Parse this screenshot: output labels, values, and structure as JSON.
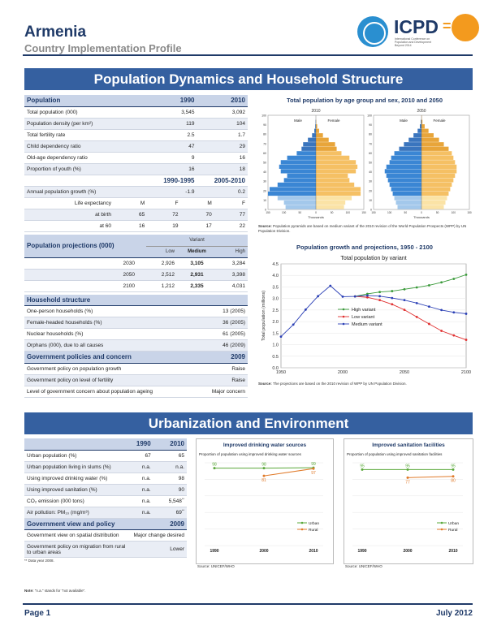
{
  "header": {
    "title": "Armenia",
    "subtitle": "Country Implementation Profile",
    "logo_text": "ICPD",
    "logo_eq": "=",
    "logo_small": "International Conference on Population and Development Beyond 2014"
  },
  "section1": {
    "title": "Population Dynamics and Household Structure"
  },
  "section2": {
    "title": "Urbanization and Environment"
  },
  "population": {
    "header": [
      "Population",
      "1990",
      "2010"
    ],
    "rows": [
      [
        "Total population (000)",
        "3,545",
        "3,092"
      ],
      [
        "Population density (per km²)",
        "119",
        "104"
      ],
      [
        "Total fertility rate",
        "2.5",
        "1.7"
      ],
      [
        "Child dependency ratio",
        "47",
        "29"
      ],
      [
        "Old-age dependency ratio",
        "9",
        "16"
      ],
      [
        "Proportion of youth (%)",
        "16",
        "18"
      ]
    ],
    "period_header": [
      "",
      "1990-1995",
      "2005-2010"
    ],
    "growth": [
      "Annual population growth (%)",
      "-1.9",
      "0.2"
    ],
    "life_header": [
      "Life expectancy",
      "M",
      "F",
      "M",
      "F"
    ],
    "life_rows": [
      [
        "at birth",
        "65",
        "72",
        "70",
        "77"
      ],
      [
        "at 60",
        "16",
        "19",
        "17",
        "22"
      ]
    ]
  },
  "projections": {
    "title": "Population projections (000)",
    "variant_label": "Variant",
    "cols": [
      "Low",
      "Medium",
      "High"
    ],
    "rows": [
      [
        "2030",
        "2,926",
        "3,105",
        "3,284"
      ],
      [
        "2050",
        "2,512",
        "2,931",
        "3,398"
      ],
      [
        "2100",
        "1,212",
        "2,335",
        "4,031"
      ]
    ]
  },
  "household": {
    "title": "Household structure",
    "rows": [
      [
        "One-person households (%)",
        "13 (2005)"
      ],
      [
        "Female-headed households (%)",
        "36 (2005)"
      ],
      [
        "Nuclear households (%)",
        "61 (2005)"
      ],
      [
        "Orphans (000), due to all causes",
        "46 (2009)"
      ]
    ]
  },
  "policies": {
    "title": "Government policies and concern",
    "year": "2009",
    "rows": [
      [
        "Government policy on population growth",
        "Raise"
      ],
      [
        "Government policy on level of fertility",
        "Raise"
      ],
      [
        "Level of government concern about population ageing",
        "Major concern"
      ]
    ]
  },
  "pyramid": {
    "title": "Total population by age group and sex, 2010 and 2050",
    "years": [
      "2010",
      "2050"
    ],
    "male": "Male",
    "female": "Female",
    "xlabel": "Thousands",
    "ages": [
      "0",
      "10",
      "20",
      "30",
      "40",
      "50",
      "60",
      "70",
      "80",
      "90",
      "100"
    ],
    "x_ticks": [
      "150",
      "100",
      "50",
      "0",
      "50",
      "100",
      "150"
    ],
    "male_2010": [
      95,
      100,
      120,
      150,
      145,
      120,
      100,
      90,
      110,
      115,
      110,
      90,
      60,
      45,
      40,
      25,
      12,
      5,
      2,
      1,
      0
    ],
    "female_2010": [
      88,
      92,
      112,
      140,
      140,
      120,
      105,
      100,
      125,
      130,
      125,
      105,
      80,
      65,
      60,
      40,
      22,
      10,
      4,
      1,
      0
    ],
    "male_2050": [
      75,
      80,
      85,
      90,
      95,
      100,
      105,
      110,
      115,
      110,
      100,
      95,
      85,
      70,
      55,
      40,
      25,
      12,
      5,
      2,
      0
    ],
    "female_2050": [
      70,
      75,
      80,
      85,
      90,
      95,
      100,
      105,
      110,
      110,
      105,
      100,
      95,
      85,
      70,
      55,
      38,
      22,
      10,
      3,
      1
    ],
    "source_label": "Source:",
    "source": "Population pyramids are based on medium variant of the 2010 revision of the World Population Prospects (WPP) by UN Population Division."
  },
  "chart_data": [
    {
      "type": "line",
      "title": "Population growth and projections, 1950 - 2100",
      "subtitle": "Total population by variant",
      "xlabel": "",
      "ylabel": "Total population (millions)",
      "xlim": [
        1950,
        2100
      ],
      "ylim": [
        0,
        4.5
      ],
      "xticks": [
        1950,
        2000,
        2050,
        2100
      ],
      "yticks": [
        0.0,
        0.5,
        1.0,
        1.5,
        2.0,
        2.5,
        3.0,
        3.5,
        4.0,
        4.5
      ],
      "legend_position": "middle-center",
      "colors": {
        "high": "#3a9a3a",
        "low": "#e03030",
        "medium": "#2a3fb5",
        "past": "#2a3fb5"
      },
      "series": [
        {
          "name": "High variant",
          "x": [
            2010,
            2020,
            2030,
            2040,
            2050,
            2060,
            2070,
            2080,
            2090,
            2100
          ],
          "values": [
            3.09,
            3.2,
            3.28,
            3.32,
            3.4,
            3.48,
            3.57,
            3.7,
            3.85,
            4.03
          ]
        },
        {
          "name": "Low variant",
          "x": [
            2010,
            2020,
            2030,
            2040,
            2050,
            2060,
            2070,
            2080,
            2090,
            2100
          ],
          "values": [
            3.09,
            3.05,
            2.93,
            2.75,
            2.51,
            2.2,
            1.9,
            1.6,
            1.4,
            1.21
          ]
        },
        {
          "name": "Medium variant",
          "x": [
            1950,
            1960,
            1970,
            1980,
            1990,
            2000,
            2010,
            2020,
            2030,
            2040,
            2050,
            2060,
            2070,
            2080,
            2090,
            2100
          ],
          "values": [
            1.35,
            1.87,
            2.52,
            3.1,
            3.55,
            3.08,
            3.09,
            3.13,
            3.1,
            3.02,
            2.93,
            2.8,
            2.65,
            2.5,
            2.4,
            2.34
          ]
        }
      ],
      "source_label": "Source:",
      "source": "The projections are based on the 2010 revision of WPP by UN Population Division."
    },
    {
      "type": "line",
      "title": "Improved drinking water sources",
      "subtitle": "Proportion of population using improved drinking water sources",
      "xlabel": "",
      "ylabel": "",
      "categories": [
        "1990",
        "2000",
        "2010"
      ],
      "colors": {
        "urban": "#5aa83a",
        "rural": "#e07a2a"
      },
      "series": [
        {
          "name": "Urban",
          "x": [
            1990,
            2000,
            2010
          ],
          "values": [
            98,
            98,
            99
          ]
        },
        {
          "name": "Rural",
          "x": [
            2000,
            2010
          ],
          "values": [
            81,
            97
          ]
        }
      ],
      "source": "Source: UNICEF/WHO"
    },
    {
      "type": "line",
      "title": "Improved sanitation facilities",
      "subtitle": "Proportion of population using improved sanitation facilities",
      "xlabel": "",
      "ylabel": "",
      "categories": [
        "1990",
        "2000",
        "2010"
      ],
      "colors": {
        "urban": "#5aa83a",
        "rural": "#e07a2a"
      },
      "series": [
        {
          "name": "Urban",
          "x": [
            1990,
            2000,
            2010
          ],
          "values": [
            95,
            95,
            95
          ]
        },
        {
          "name": "Rural",
          "x": [
            2000,
            2010
          ],
          "values": [
            77,
            80
          ]
        }
      ],
      "source": "Source: UNICEF/WHO"
    }
  ],
  "urban": {
    "header": [
      "",
      "1990",
      "2010"
    ],
    "rows": [
      [
        "Urban population (%)",
        "67",
        "65"
      ],
      [
        "Urban population living in slums (%)",
        "n.a.",
        "n.a."
      ],
      [
        "Using improved drinking water (%)",
        "n.a.",
        "98"
      ],
      [
        "Using improved sanitation (%)",
        "n.a.",
        "90"
      ],
      [
        "CO₂ emission (000 tons)",
        "n.a.",
        "5,548"
      ],
      [
        "Air pollution: PM₁₀ (mg/m³)",
        "n.a.",
        "69"
      ]
    ],
    "footnote_mark": "**",
    "policy_title": "Government view and policy",
    "policy_year": "2009",
    "policy_rows": [
      [
        "Government view on spatial distribution",
        "Major change desired"
      ],
      [
        "Government policy on migration from rural to urban areas",
        "Lower"
      ]
    ],
    "footnote": "** Data year 2008.",
    "note_bold": "Note:",
    "note": "\"n.a.\" stands for \"not available\"."
  },
  "footer": {
    "page": "Page 1",
    "date": "July 2012"
  }
}
